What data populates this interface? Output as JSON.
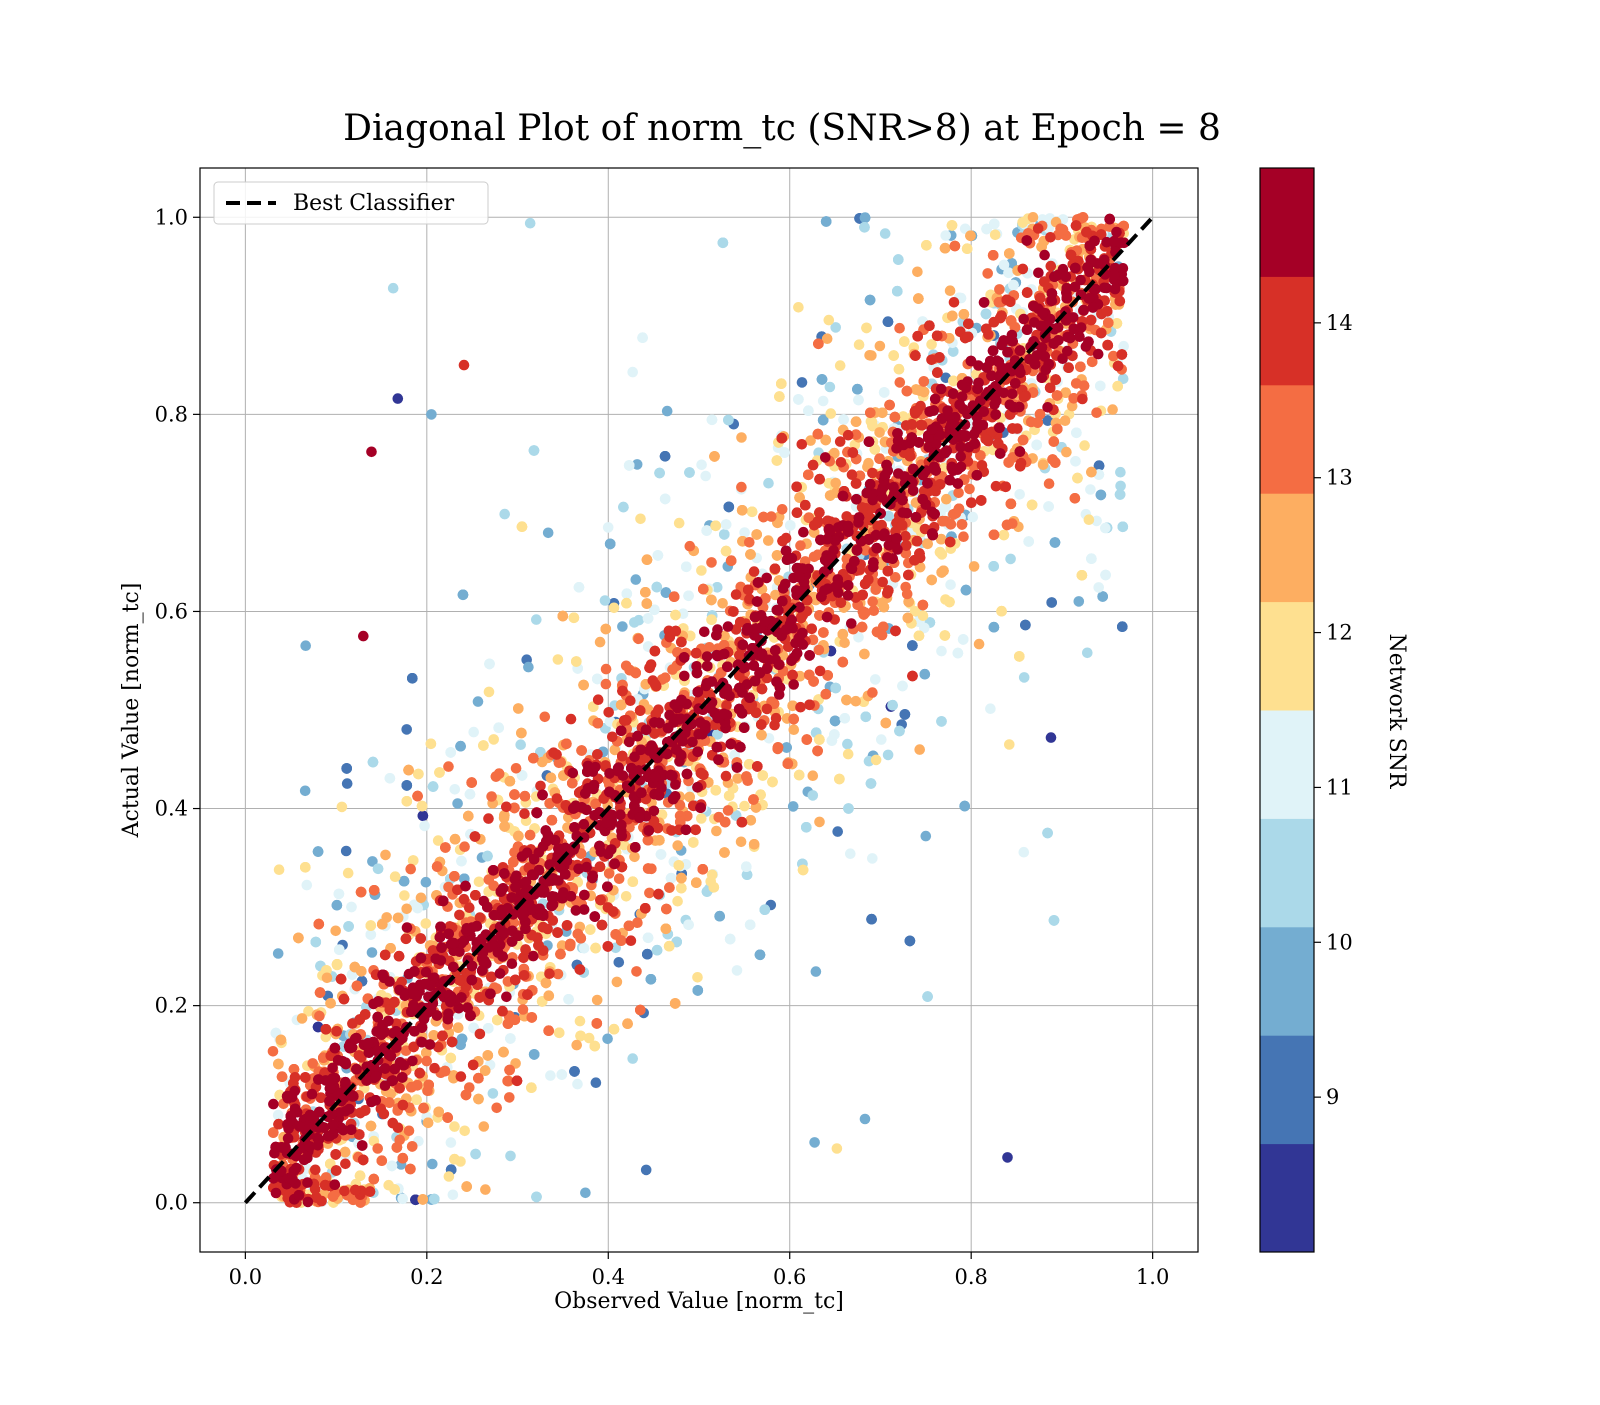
{
  "chart_data": {
    "type": "scatter",
    "title": "Diagonal Plot of norm_tc (SNR>8) at Epoch = 8",
    "xlabel": "Observed Value [norm_tc]",
    "ylabel": "Actual Value [norm_tc]",
    "xlim": [
      -0.05,
      1.05
    ],
    "ylim": [
      -0.05,
      1.05
    ],
    "xticks": [
      0.0,
      0.2,
      0.4,
      0.6,
      0.8,
      1.0
    ],
    "xtick_labels": [
      "0.0",
      "0.2",
      "0.4",
      "0.6",
      "0.8",
      "1.0"
    ],
    "yticks": [
      0.0,
      0.2,
      0.4,
      0.6,
      0.8,
      1.0
    ],
    "ytick_labels": [
      "0.0",
      "0.2",
      "0.4",
      "0.6",
      "0.8",
      "1.0"
    ],
    "grid": true,
    "legend": {
      "placement": "top-left",
      "entries": [
        {
          "label": "Best Classifier",
          "style": "dashed",
          "color": "#000000"
        }
      ]
    },
    "reference_line": {
      "name": "Best Classifier",
      "x": [
        0.0,
        1.0
      ],
      "y": [
        0.0,
        1.0
      ]
    },
    "colorbar": {
      "label": "Network SNR",
      "range": [
        8,
        15
      ],
      "ticks": [
        9,
        10,
        11,
        12,
        13,
        14
      ],
      "tick_labels": [
        "9",
        "10",
        "11",
        "12",
        "13",
        "14"
      ],
      "bands": [
        "#313695",
        "#4575b4",
        "#74add1",
        "#abd9e9",
        "#e0f3f8",
        "#fee090",
        "#fdae61",
        "#f46d43",
        "#d73027",
        "#a50026"
      ]
    },
    "scatter_summary": {
      "points_near_diagonal_color": "#a50026",
      "spread_lower_snr": "wider scatter around the diagonal for lower SNR values",
      "x_range": [
        0.03,
        0.97
      ],
      "y_range": [
        0.0,
        1.0
      ]
    },
    "outlier_points": [
      {
        "x": 0.163,
        "y": 0.928,
        "snr": 10.5
      },
      {
        "x": 0.139,
        "y": 0.762,
        "snr": 14.5
      },
      {
        "x": 0.168,
        "y": 0.816,
        "snr": 8.2
      },
      {
        "x": 0.205,
        "y": 0.8,
        "snr": 9.4
      },
      {
        "x": 0.241,
        "y": 0.85,
        "snr": 13.8
      },
      {
        "x": 0.066,
        "y": 0.418,
        "snr": 9.4
      },
      {
        "x": 0.84,
        "y": 0.046,
        "snr": 8.2
      },
      {
        "x": 0.888,
        "y": 0.472,
        "snr": 8.2
      },
      {
        "x": 0.928,
        "y": 0.558,
        "snr": 10.5
      },
      {
        "x": 0.842,
        "y": 0.465,
        "snr": 12.2
      },
      {
        "x": 0.683,
        "y": 0.085,
        "snr": 9.4
      },
      {
        "x": 0.652,
        "y": 0.055,
        "snr": 11.5
      },
      {
        "x": 0.75,
        "y": 0.372,
        "snr": 9.4
      },
      {
        "x": 0.314,
        "y": 0.994,
        "snr": 10.5
      },
      {
        "x": 0.13,
        "y": 0.575,
        "snr": 14.5
      }
    ]
  }
}
